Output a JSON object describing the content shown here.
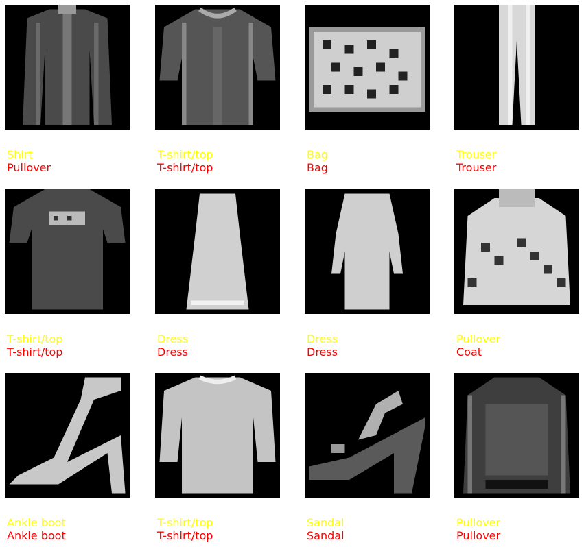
{
  "colors": {
    "true_label": "#ffff00",
    "pred_label": "#ff0000",
    "image_bg": "#000000"
  },
  "samples": [
    {
      "true": "Shirt",
      "pred": "Pullover",
      "icon": "shirt-icon"
    },
    {
      "true": "T-shirt/top",
      "pred": "T-shirt/top",
      "icon": "tshirt-icon"
    },
    {
      "true": "Bag",
      "pred": "Bag",
      "icon": "bag-icon"
    },
    {
      "true": "Trouser",
      "pred": "Trouser",
      "icon": "trouser-icon"
    },
    {
      "true": "T-shirt/top",
      "pred": "T-shirt/top",
      "icon": "tshirt-icon"
    },
    {
      "true": "Dress",
      "pred": "Dress",
      "icon": "dress-icon"
    },
    {
      "true": "Dress",
      "pred": "Dress",
      "icon": "dress-icon"
    },
    {
      "true": "Pullover",
      "pred": "Coat",
      "icon": "pullover-icon"
    },
    {
      "true": "Ankle boot",
      "pred": "Ankle boot",
      "icon": "ankle-boot-icon"
    },
    {
      "true": "T-shirt/top",
      "pred": "T-shirt/top",
      "icon": "tshirt-icon"
    },
    {
      "true": "Sandal",
      "pred": "Sandal",
      "icon": "sandal-icon"
    },
    {
      "true": "Pullover",
      "pred": "Pullover",
      "icon": "pullover-icon"
    }
  ]
}
